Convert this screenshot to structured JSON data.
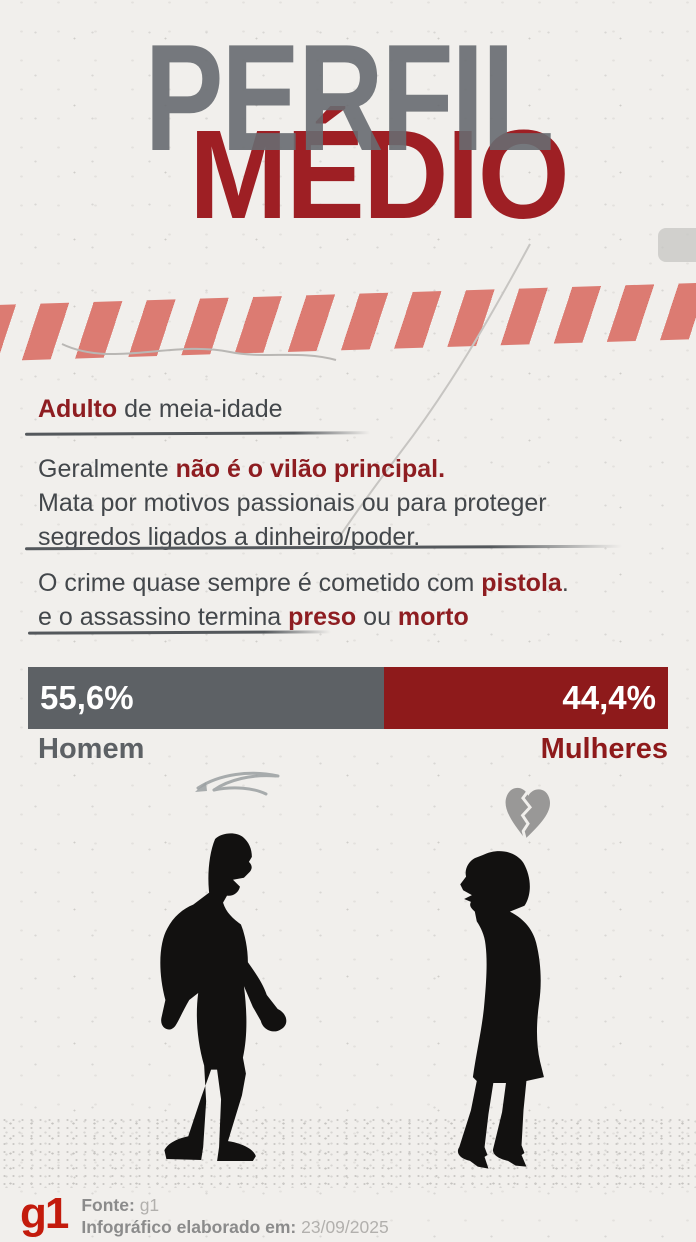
{
  "title": {
    "top": "PERFIL",
    "bottom": "MÉDIO"
  },
  "sections": [
    {
      "lines": [
        [
          {
            "t": "Adulto",
            "accent": true
          },
          {
            "t": " de meia-idade",
            "accent": false
          }
        ]
      ]
    },
    {
      "lines": [
        [
          {
            "t": "Geralmente ",
            "accent": false
          },
          {
            "t": "não é o vilão principal.",
            "accent": true
          }
        ],
        [
          {
            "t": "Mata por motivos passionais ou para proteger",
            "accent": false
          }
        ],
        [
          {
            "t": "segredos ligados a dinheiro/poder.",
            "accent": false
          }
        ]
      ]
    },
    {
      "lines": [
        [
          {
            "t": "O crime quase sempre é cometido com ",
            "accent": false
          },
          {
            "t": "pistola",
            "accent": true
          },
          {
            "t": ".",
            "accent": false
          }
        ],
        [
          {
            "t": "e o assassino termina ",
            "accent": false
          },
          {
            "t": "preso",
            "accent": true
          },
          {
            "t": " ou ",
            "accent": false
          },
          {
            "t": "morto",
            "accent": true
          }
        ]
      ]
    }
  ],
  "chart_data": {
    "type": "bar",
    "categories": [
      "Homem",
      "Mulheres"
    ],
    "values": [
      55.6,
      44.4
    ],
    "value_labels": [
      "55,6%",
      "44,4%"
    ],
    "unit": "%",
    "colors": [
      "#5d6165",
      "#8e1a1b"
    ],
    "orientation": "horizontal-split",
    "title": ""
  },
  "icons": {
    "broken_heart": "broken-heart",
    "scribble": "hand-drawn-scratch",
    "man": "shouting-man-silhouette",
    "woman": "shouting-woman-silhouette"
  },
  "palette": {
    "background": "#f1efec",
    "title_gray": "#686c71",
    "title_red": "#9e1f24",
    "accent_red": "#8e1d21",
    "tape_salmon": "#dc7b72",
    "bar_gray": "#5d6165",
    "bar_red": "#8e1a1b",
    "logo_red": "#c31b0c"
  },
  "footer": {
    "logo": "g1",
    "source_label": "Fonte:",
    "source_value": "g1",
    "date_label": "Infográfico elaborado em:",
    "date_value": "23/09/2025"
  }
}
